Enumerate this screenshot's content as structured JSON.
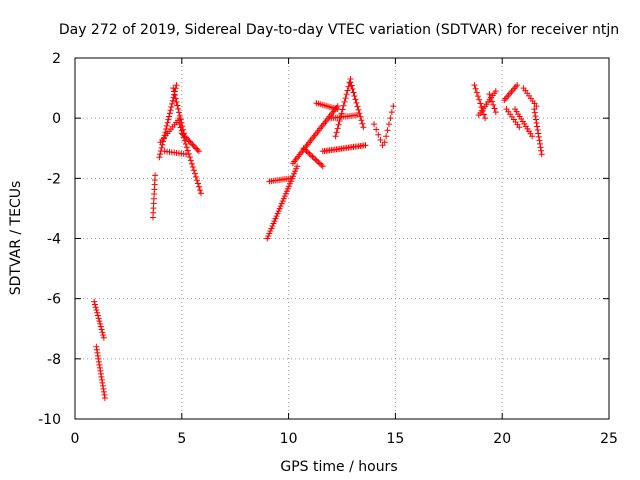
{
  "chart_data": {
    "type": "scatter",
    "title": "Day 272 of 2019, Sidereal Day-to-day VTEC variation (SDTVAR) for receiver ntjn",
    "xlabel": "GPS time / hours",
    "ylabel": "SDTVAR / TECUs",
    "xlim": [
      0,
      25
    ],
    "ylim": [
      -10,
      2
    ],
    "xticks": [
      0,
      5,
      10,
      15,
      20,
      25
    ],
    "yticks": [
      -10,
      -8,
      -6,
      -4,
      -2,
      0,
      2
    ],
    "grid": true,
    "marker": "+",
    "color": "#ff0000",
    "series": [
      {
        "name": "SDTVAR",
        "segments": [
          {
            "x0": 0.9,
            "x1": 1.35,
            "y0": -6.1,
            "y1": -7.3,
            "n": 14
          },
          {
            "x0": 1.0,
            "x1": 1.4,
            "y0": -7.6,
            "y1": -9.3,
            "n": 18
          },
          {
            "x0": 3.65,
            "x1": 3.75,
            "y0": -3.3,
            "y1": -1.9,
            "n": 10
          },
          {
            "x0": 3.95,
            "x1": 4.75,
            "y0": -1.3,
            "y1": 1.1,
            "n": 24
          },
          {
            "x0": 4.0,
            "x1": 4.9,
            "y0": -0.8,
            "y1": 0.0,
            "n": 12
          },
          {
            "x0": 4.6,
            "x1": 5.1,
            "y0": 1.0,
            "y1": -0.5,
            "n": 14
          },
          {
            "x0": 4.9,
            "x1": 5.9,
            "y0": -0.2,
            "y1": -2.5,
            "n": 22
          },
          {
            "x0": 5.0,
            "x1": 5.8,
            "y0": -0.5,
            "y1": -1.1,
            "n": 14
          },
          {
            "x0": 4.2,
            "x1": 5.2,
            "y0": -1.1,
            "y1": -1.2,
            "n": 10
          },
          {
            "x0": 9.0,
            "x1": 10.4,
            "y0": -4.0,
            "y1": -1.6,
            "n": 30
          },
          {
            "x0": 9.1,
            "x1": 10.1,
            "y0": -2.1,
            "y1": -2.0,
            "n": 12
          },
          {
            "x0": 10.2,
            "x1": 12.3,
            "y0": -1.5,
            "y1": 0.4,
            "n": 34
          },
          {
            "x0": 10.7,
            "x1": 11.6,
            "y0": -1.0,
            "y1": -1.6,
            "n": 14
          },
          {
            "x0": 11.6,
            "x1": 13.6,
            "y0": -1.1,
            "y1": -0.9,
            "n": 26
          },
          {
            "x0": 11.3,
            "x1": 12.3,
            "y0": 0.5,
            "y1": 0.3,
            "n": 12
          },
          {
            "x0": 12.2,
            "x1": 12.9,
            "y0": -0.6,
            "y1": 1.3,
            "n": 16
          },
          {
            "x0": 12.9,
            "x1": 13.5,
            "y0": 1.2,
            "y1": -0.3,
            "n": 14
          },
          {
            "x0": 12.0,
            "x1": 13.2,
            "y0": 0.0,
            "y1": 0.1,
            "n": 14
          },
          {
            "x0": 14.0,
            "x1": 14.4,
            "y0": -0.2,
            "y1": -0.9,
            "n": 5
          },
          {
            "x0": 14.5,
            "x1": 14.9,
            "y0": -0.8,
            "y1": 0.4,
            "n": 7
          },
          {
            "x0": 18.7,
            "x1": 19.2,
            "y0": 1.1,
            "y1": 0.0,
            "n": 10
          },
          {
            "x0": 18.9,
            "x1": 19.7,
            "y0": 0.1,
            "y1": 0.9,
            "n": 12
          },
          {
            "x0": 19.4,
            "x1": 19.7,
            "y0": 0.8,
            "y1": 0.2,
            "n": 6
          },
          {
            "x0": 20.1,
            "x1": 20.7,
            "y0": 0.6,
            "y1": 1.1,
            "n": 10
          },
          {
            "x0": 20.2,
            "x1": 20.8,
            "y0": 0.3,
            "y1": -0.3,
            "n": 8
          },
          {
            "x0": 20.6,
            "x1": 21.4,
            "y0": 0.3,
            "y1": -0.6,
            "n": 12
          },
          {
            "x0": 21.0,
            "x1": 21.6,
            "y0": 1.0,
            "y1": 0.4,
            "n": 8
          },
          {
            "x0": 21.5,
            "x1": 21.85,
            "y0": 0.3,
            "y1": -1.2,
            "n": 14
          }
        ]
      }
    ]
  }
}
